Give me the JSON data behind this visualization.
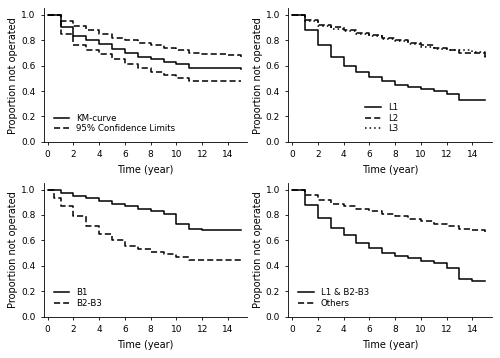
{
  "tl": {
    "km": [
      [
        0,
        1.0
      ],
      [
        1,
        0.9
      ],
      [
        2,
        0.83
      ],
      [
        3,
        0.8
      ],
      [
        4,
        0.77
      ],
      [
        5,
        0.73
      ],
      [
        6,
        0.7
      ],
      [
        7,
        0.67
      ],
      [
        8,
        0.65
      ],
      [
        9,
        0.63
      ],
      [
        10,
        0.61
      ],
      [
        11,
        0.58
      ],
      [
        12,
        0.58
      ],
      [
        13,
        0.58
      ],
      [
        14,
        0.58
      ],
      [
        15,
        0.57
      ]
    ],
    "upper": [
      [
        0,
        1.0
      ],
      [
        1,
        0.95
      ],
      [
        2,
        0.91
      ],
      [
        3,
        0.88
      ],
      [
        4,
        0.85
      ],
      [
        5,
        0.82
      ],
      [
        6,
        0.8
      ],
      [
        7,
        0.78
      ],
      [
        8,
        0.76
      ],
      [
        9,
        0.74
      ],
      [
        10,
        0.72
      ],
      [
        11,
        0.7
      ],
      [
        12,
        0.69
      ],
      [
        13,
        0.69
      ],
      [
        14,
        0.68
      ],
      [
        15,
        0.67
      ]
    ],
    "lower": [
      [
        0,
        1.0
      ],
      [
        1,
        0.85
      ],
      [
        2,
        0.76
      ],
      [
        3,
        0.72
      ],
      [
        4,
        0.69
      ],
      [
        5,
        0.65
      ],
      [
        6,
        0.61
      ],
      [
        7,
        0.58
      ],
      [
        8,
        0.55
      ],
      [
        9,
        0.53
      ],
      [
        10,
        0.5
      ],
      [
        11,
        0.48
      ],
      [
        12,
        0.48
      ],
      [
        13,
        0.48
      ],
      [
        14,
        0.48
      ],
      [
        15,
        0.48
      ]
    ]
  },
  "tr": {
    "L1": [
      [
        0,
        1.0
      ],
      [
        1,
        0.88
      ],
      [
        2,
        0.76
      ],
      [
        3,
        0.67
      ],
      [
        4,
        0.6
      ],
      [
        5,
        0.55
      ],
      [
        6,
        0.51
      ],
      [
        7,
        0.48
      ],
      [
        8,
        0.45
      ],
      [
        9,
        0.43
      ],
      [
        10,
        0.42
      ],
      [
        11,
        0.4
      ],
      [
        12,
        0.38
      ],
      [
        13,
        0.33
      ],
      [
        14,
        0.33
      ],
      [
        15,
        0.33
      ]
    ],
    "L2": [
      [
        0,
        1.0
      ],
      [
        1,
        0.96
      ],
      [
        2,
        0.92
      ],
      [
        3,
        0.9
      ],
      [
        4,
        0.88
      ],
      [
        5,
        0.86
      ],
      [
        6,
        0.84
      ],
      [
        7,
        0.82
      ],
      [
        8,
        0.8
      ],
      [
        9,
        0.78
      ],
      [
        10,
        0.76
      ],
      [
        11,
        0.74
      ],
      [
        12,
        0.72
      ],
      [
        13,
        0.7
      ],
      [
        14,
        0.7
      ],
      [
        15,
        0.65
      ]
    ],
    "L3": [
      [
        0,
        1.0
      ],
      [
        1,
        0.95
      ],
      [
        2,
        0.91
      ],
      [
        3,
        0.89
      ],
      [
        4,
        0.87
      ],
      [
        5,
        0.85
      ],
      [
        6,
        0.83
      ],
      [
        7,
        0.81
      ],
      [
        8,
        0.79
      ],
      [
        9,
        0.77
      ],
      [
        10,
        0.75
      ],
      [
        11,
        0.73
      ],
      [
        12,
        0.72
      ],
      [
        13,
        0.72
      ],
      [
        14,
        0.71
      ],
      [
        15,
        0.65
      ]
    ]
  },
  "bl": {
    "B1": [
      [
        0,
        1.0
      ],
      [
        1,
        0.97
      ],
      [
        2,
        0.95
      ],
      [
        3,
        0.93
      ],
      [
        4,
        0.91
      ],
      [
        5,
        0.89
      ],
      [
        6,
        0.87
      ],
      [
        7,
        0.85
      ],
      [
        8,
        0.83
      ],
      [
        9,
        0.81
      ],
      [
        10,
        0.73
      ],
      [
        11,
        0.69
      ],
      [
        12,
        0.68
      ],
      [
        13,
        0.68
      ],
      [
        14,
        0.68
      ],
      [
        15,
        0.68
      ]
    ],
    "B2B3": [
      [
        0,
        1.0
      ],
      [
        0.5,
        0.93
      ],
      [
        1,
        0.87
      ],
      [
        2,
        0.79
      ],
      [
        3,
        0.71
      ],
      [
        4,
        0.65
      ],
      [
        5,
        0.6
      ],
      [
        6,
        0.56
      ],
      [
        7,
        0.53
      ],
      [
        8,
        0.51
      ],
      [
        9,
        0.49
      ],
      [
        10,
        0.47
      ],
      [
        11,
        0.45
      ],
      [
        12,
        0.45
      ],
      [
        13,
        0.45
      ],
      [
        14,
        0.45
      ],
      [
        15,
        0.45
      ]
    ]
  },
  "br": {
    "L1B23": [
      [
        0,
        1.0
      ],
      [
        1,
        0.88
      ],
      [
        2,
        0.78
      ],
      [
        3,
        0.7
      ],
      [
        4,
        0.64
      ],
      [
        5,
        0.58
      ],
      [
        6,
        0.54
      ],
      [
        7,
        0.5
      ],
      [
        8,
        0.48
      ],
      [
        9,
        0.46
      ],
      [
        10,
        0.44
      ],
      [
        11,
        0.42
      ],
      [
        12,
        0.38
      ],
      [
        13,
        0.3
      ],
      [
        14,
        0.28
      ],
      [
        15,
        0.28
      ]
    ],
    "Others": [
      [
        0,
        1.0
      ],
      [
        1,
        0.96
      ],
      [
        2,
        0.92
      ],
      [
        3,
        0.89
      ],
      [
        4,
        0.87
      ],
      [
        5,
        0.85
      ],
      [
        6,
        0.83
      ],
      [
        7,
        0.81
      ],
      [
        8,
        0.79
      ],
      [
        9,
        0.77
      ],
      [
        10,
        0.75
      ],
      [
        11,
        0.73
      ],
      [
        12,
        0.71
      ],
      [
        13,
        0.69
      ],
      [
        14,
        0.68
      ],
      [
        15,
        0.67
      ]
    ]
  },
  "ylabel": "Proportion not operated",
  "xlabel": "Time (year)",
  "ylim": [
    0.0,
    1.05
  ],
  "xlim": [
    -0.3,
    15.5
  ],
  "xticks": [
    0,
    2,
    4,
    6,
    8,
    10,
    12,
    14
  ],
  "yticks": [
    0.0,
    0.2,
    0.4,
    0.6,
    0.8,
    1.0
  ]
}
